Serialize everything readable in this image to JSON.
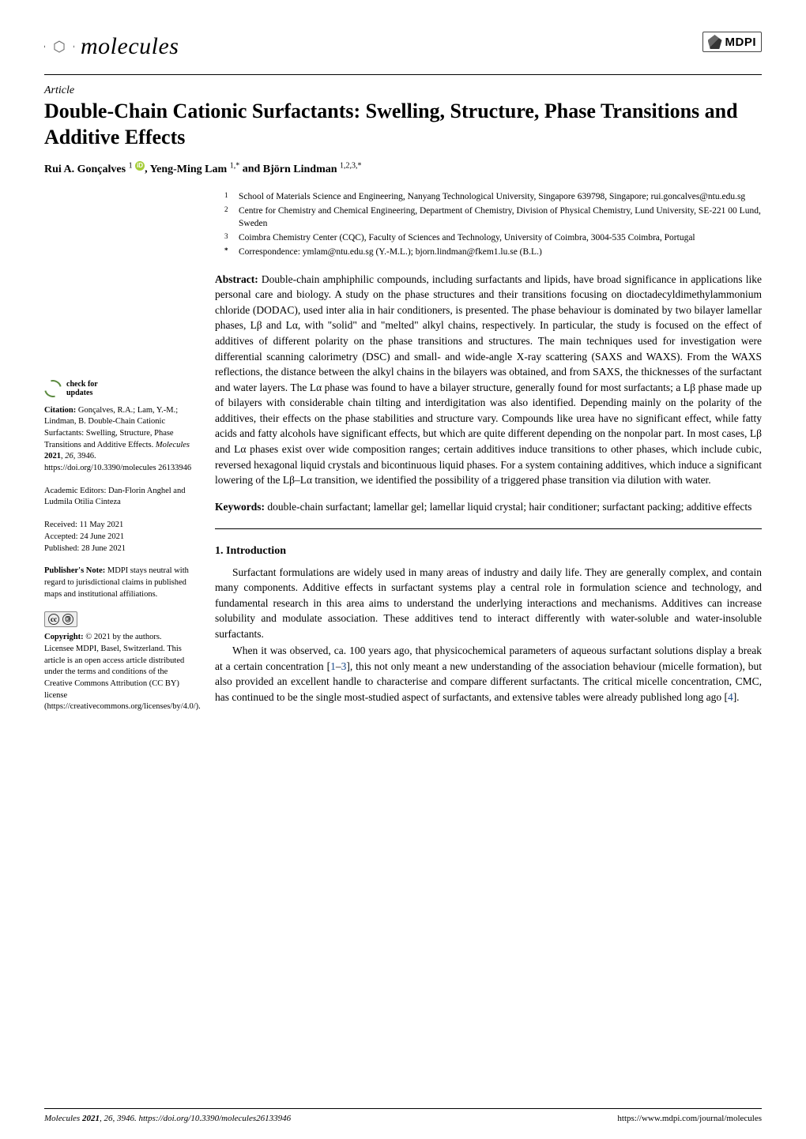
{
  "journal": {
    "name": "molecules",
    "publisher": "MDPI"
  },
  "article_type": "Article",
  "title": "Double-Chain Cationic Surfactants: Swelling, Structure, Phase Transitions and Additive Effects",
  "authors_html": "Rui A. Gonçalves <sup>1</sup> ⬤, Yeng-Ming Lam <sup>1,</sup>* and Björn Lindman <sup>1,2,3,</sup>*",
  "authors": [
    {
      "name": "Rui A. Gonçalves",
      "affil": "1",
      "orcid": true
    },
    {
      "name": "Yeng-Ming Lam",
      "affil": "1,*"
    },
    {
      "name": "Björn Lindman",
      "affil": "1,2,3,*"
    }
  ],
  "affiliations": [
    {
      "num": "1",
      "text": "School of Materials Science and Engineering, Nanyang Technological University, Singapore 639798, Singapore; rui.goncalves@ntu.edu.sg"
    },
    {
      "num": "2",
      "text": "Centre for Chemistry and Chemical Engineering, Department of Chemistry, Division of Physical Chemistry, Lund University, SE-221 00 Lund, Sweden"
    },
    {
      "num": "3",
      "text": "Coimbra Chemistry Center (CQC), Faculty of Sciences and Technology, University of Coimbra, 3004-535 Coimbra, Portugal"
    },
    {
      "num": "*",
      "text": "Correspondence: ymlam@ntu.edu.sg (Y.-M.L.); bjorn.lindman@fkem1.lu.se (B.L.)"
    }
  ],
  "abstract_label": "Abstract:",
  "abstract": "Double-chain amphiphilic compounds, including surfactants and lipids, have broad significance in applications like personal care and biology. A study on the phase structures and their transitions focusing on dioctadecyldimethylammonium chloride (DODAC), used inter alia in hair conditioners, is presented. The phase behaviour is dominated by two bilayer lamellar phases, Lβ and Lα, with \"solid\" and \"melted\" alkyl chains, respectively. In particular, the study is focused on the effect of additives of different polarity on the phase transitions and structures. The main techniques used for investigation were differential scanning calorimetry (DSC) and small- and wide-angle X-ray scattering (SAXS and WAXS). From the WAXS reflections, the distance between the alkyl chains in the bilayers was obtained, and from SAXS, the thicknesses of the surfactant and water layers. The Lα phase was found to have a bilayer structure, generally found for most surfactants; a Lβ phase made up of bilayers with considerable chain tilting and interdigitation was also identified. Depending mainly on the polarity of the additives, their effects on the phase stabilities and structure vary. Compounds like urea have no significant effect, while fatty acids and fatty alcohols have significant effects, but which are quite different depending on the nonpolar part. In most cases, Lβ and Lα phases exist over wide composition ranges; certain additives induce transitions to other phases, which include cubic, reversed hexagonal liquid crystals and bicontinuous liquid phases. For a system containing additives, which induce a significant lowering of the Lβ–Lα transition, we identified the possibility of a triggered phase transition via dilution with water.",
  "keywords_label": "Keywords:",
  "keywords": "double-chain surfactant; lamellar gel; lamellar liquid crystal; hair conditioner; surfactant packing; additive effects",
  "section1": {
    "heading": "1. Introduction",
    "p1": "Surfactant formulations are widely used in many areas of industry and daily life. They are generally complex, and contain many components. Additive effects in surfactant systems play a central role in formulation science and technology, and fundamental research in this area aims to understand the underlying interactions and mechanisms. Additives can increase solubility and modulate association. These additives tend to interact differently with water-soluble and water-insoluble surfactants.",
    "p2_a": "When it was observed, ca. 100 years ago, that physicochemical parameters of aqueous surfactant solutions display a break at a certain concentration [",
    "p2_ref1": "1",
    "p2_b": "–",
    "p2_ref2": "3",
    "p2_c": "], this not only meant a new understanding of the association behaviour (micelle formation), but also provided an excellent handle to characterise and compare different surfactants. The critical micelle concentration, CMC, has continued to be the single most-studied aspect of surfactants, and extensive tables were already published long ago [",
    "p2_ref3": "4",
    "p2_d": "]."
  },
  "sidebar": {
    "check_updates": "check for\nupdates",
    "citation": "Citation: Gonçalves, R.A.; Lam, Y.-M.; Lindman, B. Double-Chain Cationic Surfactants: Swelling, Structure, Phase Transitions and Additive Effects. Molecules 2021, 26, 3946. https://doi.org/10.3390/molecules 26133946",
    "editors": "Academic Editors: Dan-Florin Anghel and Ludmila Otilia Cinteza",
    "received": "Received: 11 May 2021",
    "accepted": "Accepted: 24 June 2021",
    "published": "Published: 28 June 2021",
    "publishers_note": "Publisher's Note: MDPI stays neutral with regard to jurisdictional claims in published maps and institutional affiliations.",
    "copyright": "Copyright: © 2021 by the authors. Licensee MDPI, Basel, Switzerland. This article is an open access article distributed under the terms and conditions of the Creative Commons Attribution (CC BY) license (https://creativecommons.org/licenses/by/4.0/)."
  },
  "footer": {
    "left_italic": "Molecules ",
    "left_bold": "2021",
    "left_rest": ", 26, 3946. https://doi.org/10.3390/molecules26133946",
    "right": "https://www.mdpi.com/journal/molecules"
  },
  "colors": {
    "ref_link": "#1a4b8c",
    "orcid": "#A6CE39",
    "check_green": "#5b8a3f"
  }
}
